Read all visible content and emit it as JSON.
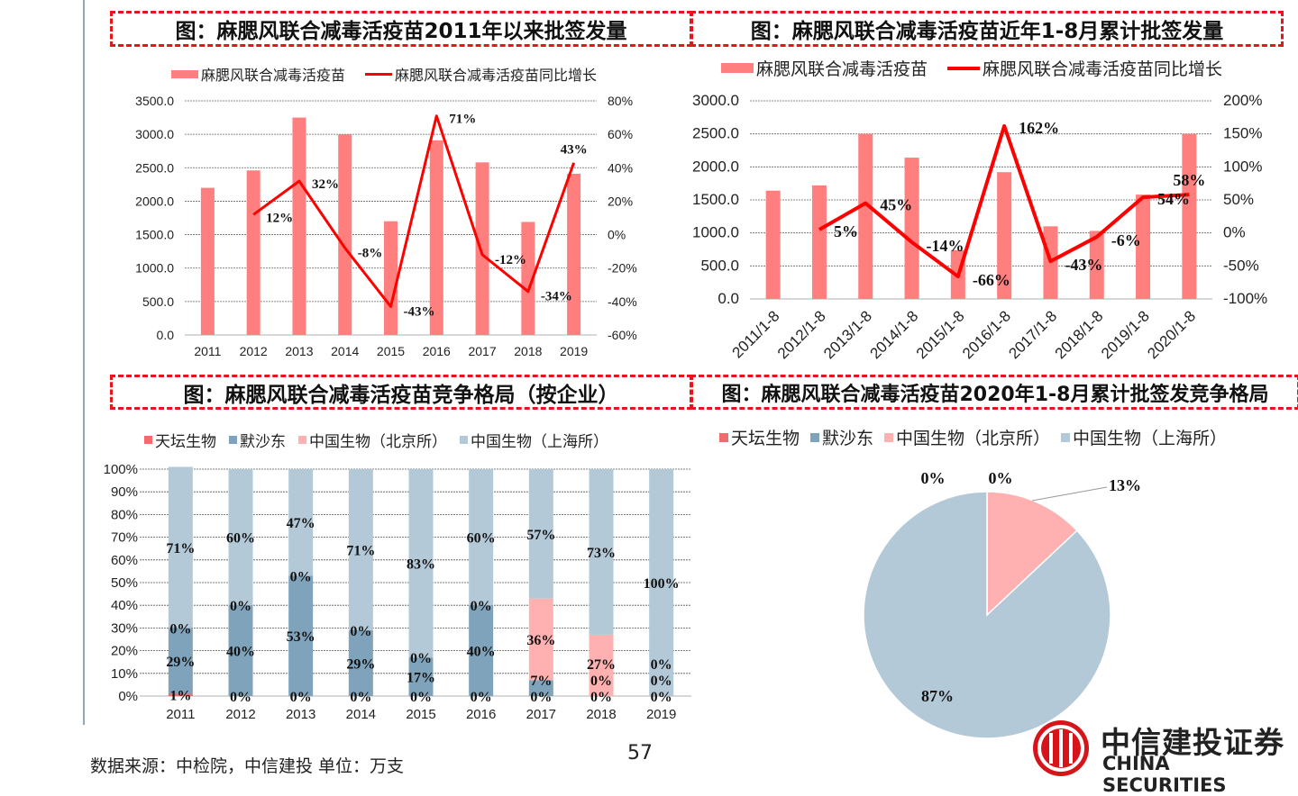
{
  "colors": {
    "bar": "#ff7f7f",
    "line": "#ff0000",
    "tiantan": "#f26b6b",
    "msd": "#7fa3bb",
    "cnbg_bj": "#ffb1b1",
    "cnbg_sh": "#b4c9d8",
    "title_border": "#e8141b"
  },
  "titles": {
    "t1": "图：麻腮风联合减毒活疫苗2011年以来批签发量",
    "t2": "图：麻腮风联合减毒活疫苗近年1-8月累计批签发量",
    "t3": "图：麻腮风联合减毒活疫苗竞争格局（按企业）",
    "t4": "图：麻腮风联合减毒活疫苗2020年1-8月累计批签发竞争格局"
  },
  "footer": {
    "source": "数据来源：中检院，中信建投  单位：万支",
    "page": "57"
  },
  "logo": {
    "cn": "中信建投证券",
    "en": "CHINA SECURITIES"
  },
  "chart_data": [
    {
      "type": "bar+line",
      "title": "图：麻腮风联合减毒活疫苗2011年以来批签发量",
      "categories": [
        "2011",
        "2012",
        "2013",
        "2014",
        "2015",
        "2016",
        "2017",
        "2018",
        "2019"
      ],
      "series": [
        {
          "name": "麻腮风联合减毒活疫苗",
          "type": "bar",
          "axis": "left",
          "values": [
            2200,
            2460,
            3250,
            3000,
            1700,
            2910,
            2580,
            1690,
            2410
          ]
        },
        {
          "name": "麻腮风联合减毒活疫苗同比增长",
          "type": "line",
          "axis": "right",
          "values": [
            null,
            12,
            32,
            -8,
            -43,
            71,
            -12,
            -34,
            43
          ],
          "labels": [
            "",
            "12%",
            "32%",
            "-8%",
            "-43%",
            "71%",
            "-12%",
            "-34%",
            "43%"
          ]
        }
      ],
      "ylim": [
        0,
        3500
      ],
      "yticks": [
        "0.0",
        "500.0",
        "1000.0",
        "1500.0",
        "2000.0",
        "2500.0",
        "3000.0",
        "3500.0"
      ],
      "y2lim": [
        -60,
        80
      ],
      "y2ticks": [
        "-60%",
        "-40%",
        "-20%",
        "0%",
        "20%",
        "40%",
        "60%",
        "80%"
      ],
      "legend": "top",
      "grid": true
    },
    {
      "type": "bar+line",
      "title": "图：麻腮风联合减毒活疫苗近年1-8月累计批签发量",
      "categories": [
        "2011/1-8",
        "2012/1-8",
        "2013/1-8",
        "2014/1-8",
        "2015/1-8",
        "2016/1-8",
        "2017/1-8",
        "2018/1-8",
        "2019/1-8",
        "2020/1-8"
      ],
      "series": [
        {
          "name": "麻腮风联合减毒活疫苗",
          "type": "bar",
          "axis": "left",
          "values": [
            1640,
            1720,
            2500,
            2140,
            740,
            1920,
            1100,
            1030,
            1580,
            2500
          ]
        },
        {
          "name": "麻腮风联合减毒活疫苗同比增长",
          "type": "line",
          "axis": "right",
          "values": [
            null,
            5,
            45,
            -14,
            -66,
            162,
            -43,
            -6,
            54,
            58
          ],
          "labels": [
            "",
            "5%",
            "45%",
            "-14%",
            "-66%",
            "162%",
            "-43%",
            "-6%",
            "54%",
            "58%"
          ]
        }
      ],
      "ylim": [
        0,
        3000
      ],
      "yticks": [
        "0.0",
        "500.0",
        "1000.0",
        "1500.0",
        "2000.0",
        "2500.0",
        "3000.0"
      ],
      "y2lim": [
        -100,
        200
      ],
      "y2ticks": [
        "-100%",
        "-50%",
        "0%",
        "50%",
        "100%",
        "150%",
        "200%"
      ],
      "legend": "top",
      "grid": true
    },
    {
      "type": "stacked-bar",
      "title": "图：麻腮风联合减毒活疫苗竞争格局（按企业）",
      "categories": [
        "2011",
        "2012",
        "2013",
        "2014",
        "2015",
        "2016",
        "2017",
        "2018",
        "2019"
      ],
      "series": [
        {
          "name": "天坛生物",
          "values": [
            1,
            0,
            0,
            0,
            0,
            0,
            0,
            0,
            0
          ]
        },
        {
          "name": "默沙东",
          "values": [
            29,
            40,
            53,
            29,
            17,
            40,
            7,
            0,
            0
          ]
        },
        {
          "name": "中国生物（北京所）",
          "values": [
            0,
            0,
            0,
            0,
            0,
            0,
            36,
            27,
            0
          ]
        },
        {
          "name": "中国生物（上海所）",
          "values": [
            71,
            60,
            47,
            71,
            83,
            60,
            57,
            73,
            100
          ]
        }
      ],
      "ylim": [
        0,
        100
      ],
      "yticks": [
        "0%",
        "10%",
        "20%",
        "30%",
        "40%",
        "50%",
        "60%",
        "70%",
        "80%",
        "90%",
        "100%"
      ],
      "legend": "top",
      "grid": true
    },
    {
      "type": "pie",
      "title": "图：麻腮风联合减毒活疫苗2020年1-8月累计批签发竞争格局",
      "slices": [
        {
          "name": "天坛生物",
          "value": 0,
          "label": "0%"
        },
        {
          "name": "默沙东",
          "value": 0,
          "label": "0%"
        },
        {
          "name": "中国生物（北京所）",
          "value": 13,
          "label": "13%"
        },
        {
          "name": "中国生物（上海所）",
          "value": 87,
          "label": "87%"
        }
      ],
      "legend": "top"
    }
  ]
}
